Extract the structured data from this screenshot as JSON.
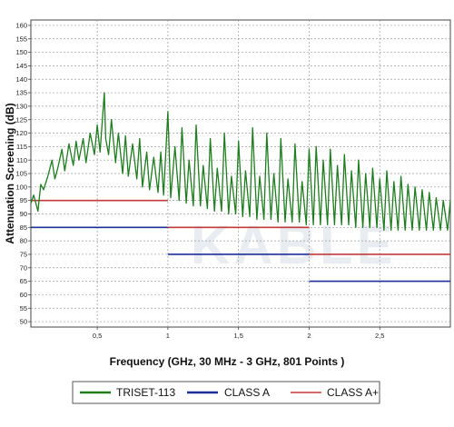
{
  "chart_data": {
    "type": "line",
    "title": "",
    "xlabel": "Frequency (GHz, 30 MHz - 3 GHz, 801 Points )",
    "ylabel": "Attenuation Screening (dB)",
    "xlim": [
      0.03,
      3.0
    ],
    "ylim": [
      48,
      162
    ],
    "grid": true,
    "legend_position": "bottom",
    "x_ticks": [
      0.5,
      1,
      1.5,
      2,
      2.5
    ],
    "x_tick_labels": [
      "0,5",
      "1",
      "1,5",
      "2",
      "2,5"
    ],
    "y_ticks": [
      50,
      55,
      60,
      65,
      70,
      75,
      80,
      85,
      90,
      95,
      100,
      105,
      110,
      115,
      120,
      125,
      130,
      135,
      140,
      145,
      150,
      155,
      160
    ],
    "watermark": "KABLE",
    "series": [
      {
        "name": "TRISET-113",
        "color": "#1e7d1e",
        "kind": "measured",
        "x": [
          0.03,
          0.05,
          0.08,
          0.1,
          0.12,
          0.15,
          0.18,
          0.2,
          0.22,
          0.25,
          0.27,
          0.3,
          0.33,
          0.35,
          0.37,
          0.4,
          0.42,
          0.45,
          0.48,
          0.5,
          0.52,
          0.55,
          0.56,
          0.58,
          0.6,
          0.63,
          0.65,
          0.68,
          0.7,
          0.72,
          0.75,
          0.78,
          0.8,
          0.82,
          0.85,
          0.87,
          0.9,
          0.93,
          0.95,
          0.97,
          1.0,
          1.02,
          1.05,
          1.08,
          1.1,
          1.13,
          1.15,
          1.18,
          1.2,
          1.23,
          1.25,
          1.28,
          1.3,
          1.33,
          1.35,
          1.38,
          1.4,
          1.43,
          1.45,
          1.48,
          1.5,
          1.53,
          1.55,
          1.58,
          1.6,
          1.63,
          1.65,
          1.68,
          1.7,
          1.73,
          1.75,
          1.78,
          1.8,
          1.83,
          1.85,
          1.88,
          1.9,
          1.93,
          1.95,
          1.98,
          2.0,
          2.03,
          2.05,
          2.08,
          2.1,
          2.13,
          2.15,
          2.18,
          2.2,
          2.23,
          2.25,
          2.28,
          2.3,
          2.33,
          2.35,
          2.38,
          2.4,
          2.43,
          2.45,
          2.48,
          2.5,
          2.53,
          2.55,
          2.58,
          2.6,
          2.63,
          2.65,
          2.68,
          2.7,
          2.73,
          2.75,
          2.78,
          2.8,
          2.83,
          2.85,
          2.88,
          2.9,
          2.93,
          2.95,
          2.98,
          3.0
        ],
        "y": [
          94,
          97,
          91,
          101,
          99,
          104,
          110,
          103,
          107,
          114,
          106,
          116,
          108,
          117,
          110,
          118,
          109,
          120,
          112,
          123,
          113,
          135,
          118,
          112,
          125,
          109,
          120,
          105,
          119,
          104,
          116,
          103,
          118,
          100,
          113,
          99,
          111,
          98,
          113,
          97,
          128,
          96,
          115,
          95,
          122,
          94,
          110,
          93,
          123,
          93,
          108,
          92,
          118,
          91,
          107,
          91,
          120,
          90,
          104,
          90,
          117,
          89,
          106,
          89,
          122,
          88,
          104,
          88,
          120,
          88,
          105,
          87,
          118,
          87,
          103,
          87,
          116,
          87,
          102,
          86,
          114,
          86,
          115,
          86,
          110,
          86,
          114,
          86,
          108,
          86,
          112,
          86,
          106,
          85,
          110,
          85,
          105,
          85,
          107,
          85,
          103,
          84,
          106,
          84,
          102,
          84,
          104,
          84,
          101,
          84,
          100,
          84,
          99,
          84,
          98,
          84,
          96,
          84,
          95,
          84,
          95
        ]
      },
      {
        "name": "CLASS A",
        "color": "#1f2f99",
        "kind": "limit",
        "segments": [
          [
            0.03,
            1.0,
            85
          ],
          [
            1.0,
            2.0,
            75
          ],
          [
            2.0,
            3.0,
            65
          ]
        ]
      },
      {
        "name": "CLASS A+",
        "color": "#c23b3b",
        "kind": "limit",
        "segments": [
          [
            0.03,
            1.0,
            95
          ],
          [
            1.0,
            2.0,
            85
          ],
          [
            2.0,
            3.0,
            75
          ]
        ]
      }
    ]
  }
}
